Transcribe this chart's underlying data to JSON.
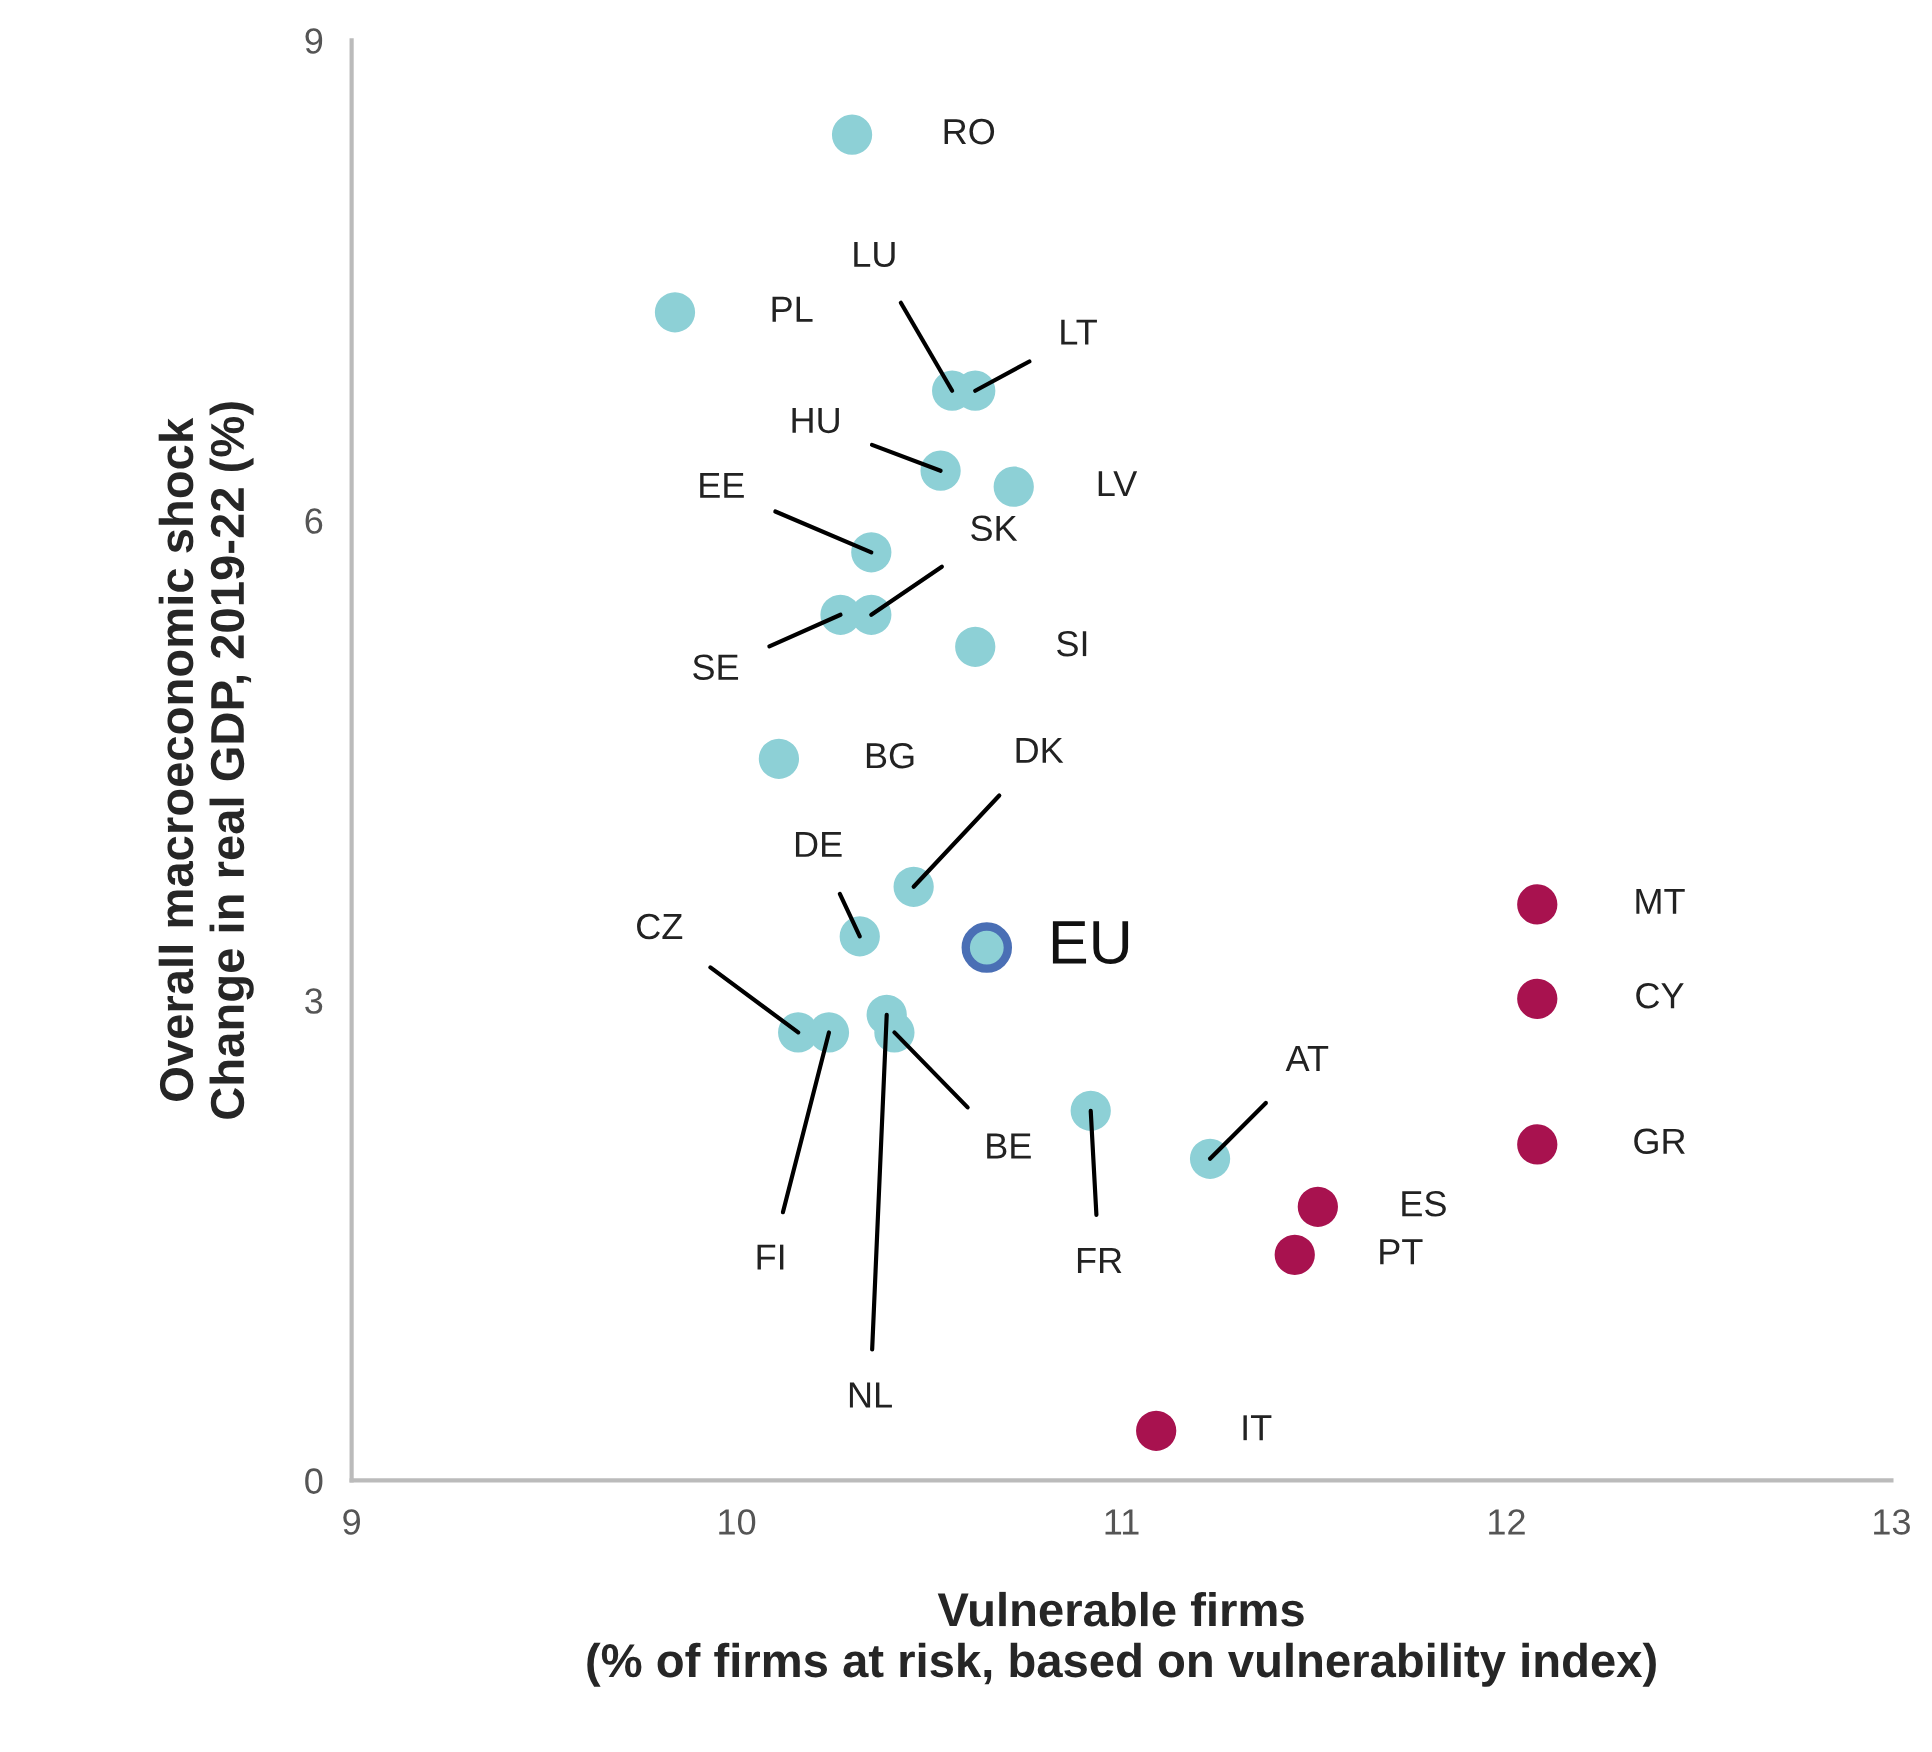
{
  "chart_data": {
    "type": "scatter",
    "xlabel": "Vulnerable firms\n(% of firms at risk, based on vulnerability index)",
    "ylabel": "Overall macroeconomic shock\nChange in real GDP, 2019-22 (%)",
    "xlim": [
      9,
      13
    ],
    "xticks": [
      9,
      10,
      11,
      12,
      13
    ],
    "ylim": [
      0,
      9
    ],
    "yticks": [
      0,
      3,
      6,
      9
    ],
    "grid": false,
    "legend": false,
    "marker": "circle",
    "series": [
      {
        "color": "#8dd0d6",
        "x": [
          10.3,
          9.84,
          10.56,
          10.62,
          10.53,
          10.72,
          10.35,
          10.35,
          10.27,
          10.62,
          10.11,
          10.46,
          10.32,
          10.16,
          10.24,
          10.39,
          10.41,
          10.92,
          11.23
        ],
        "values": [
          8.41,
          7.3,
          6.81,
          6.81,
          6.31,
          6.21,
          5.8,
          5.41,
          5.41,
          5.21,
          4.51,
          3.71,
          3.4,
          2.8,
          2.8,
          2.91,
          2.8,
          2.31,
          2.01
        ]
      },
      {
        "color": "#a8124f",
        "x": [
          11.51,
          11.45,
          11.09,
          12.08,
          12.08,
          12.08
        ],
        "values": [
          1.71,
          1.41,
          0.31,
          3.6,
          3.01,
          2.1
        ]
      },
      {
        "name": "EU",
        "color": "#8dd0d6",
        "x": [
          10.65
        ],
        "values": [
          3.33
        ]
      }
    ],
    "annotations": [
      {
        "text": "RO",
        "x": 10.3,
        "y": 8.41
      },
      {
        "text": "PL",
        "x": 9.84,
        "y": 7.3
      },
      {
        "text": "LU",
        "x": 10.56,
        "y": 6.81
      },
      {
        "text": "LT",
        "x": 10.62,
        "y": 6.81
      },
      {
        "text": "HU",
        "x": 10.53,
        "y": 6.31
      },
      {
        "text": "LV",
        "x": 10.72,
        "y": 6.21
      },
      {
        "text": "EE",
        "x": 10.35,
        "y": 5.8
      },
      {
        "text": "SK",
        "x": 10.35,
        "y": 5.41
      },
      {
        "text": "SE",
        "x": 10.27,
        "y": 5.41
      },
      {
        "text": "SI",
        "x": 10.62,
        "y": 5.21
      },
      {
        "text": "BG",
        "x": 10.11,
        "y": 4.51
      },
      {
        "text": "DK",
        "x": 10.46,
        "y": 3.71
      },
      {
        "text": "DE",
        "x": 10.32,
        "y": 3.4
      },
      {
        "text": "CZ",
        "x": 10.16,
        "y": 2.8
      },
      {
        "text": "FI",
        "x": 10.24,
        "y": 2.8
      },
      {
        "text": "NL",
        "x": 10.39,
        "y": 2.91
      },
      {
        "text": "BE",
        "x": 10.41,
        "y": 2.8
      },
      {
        "text": "FR",
        "x": 10.92,
        "y": 2.31
      },
      {
        "text": "AT",
        "x": 11.23,
        "y": 2.01
      },
      {
        "text": "ES",
        "x": 11.51,
        "y": 1.71
      },
      {
        "text": "PT",
        "x": 11.45,
        "y": 1.41
      },
      {
        "text": "IT",
        "x": 11.09,
        "y": 0.31
      },
      {
        "text": "MT",
        "x": 12.08,
        "y": 3.6
      },
      {
        "text": "CY",
        "x": 12.08,
        "y": 3.01
      },
      {
        "text": "GR",
        "x": 12.08,
        "y": 2.1
      }
    ]
  }
}
